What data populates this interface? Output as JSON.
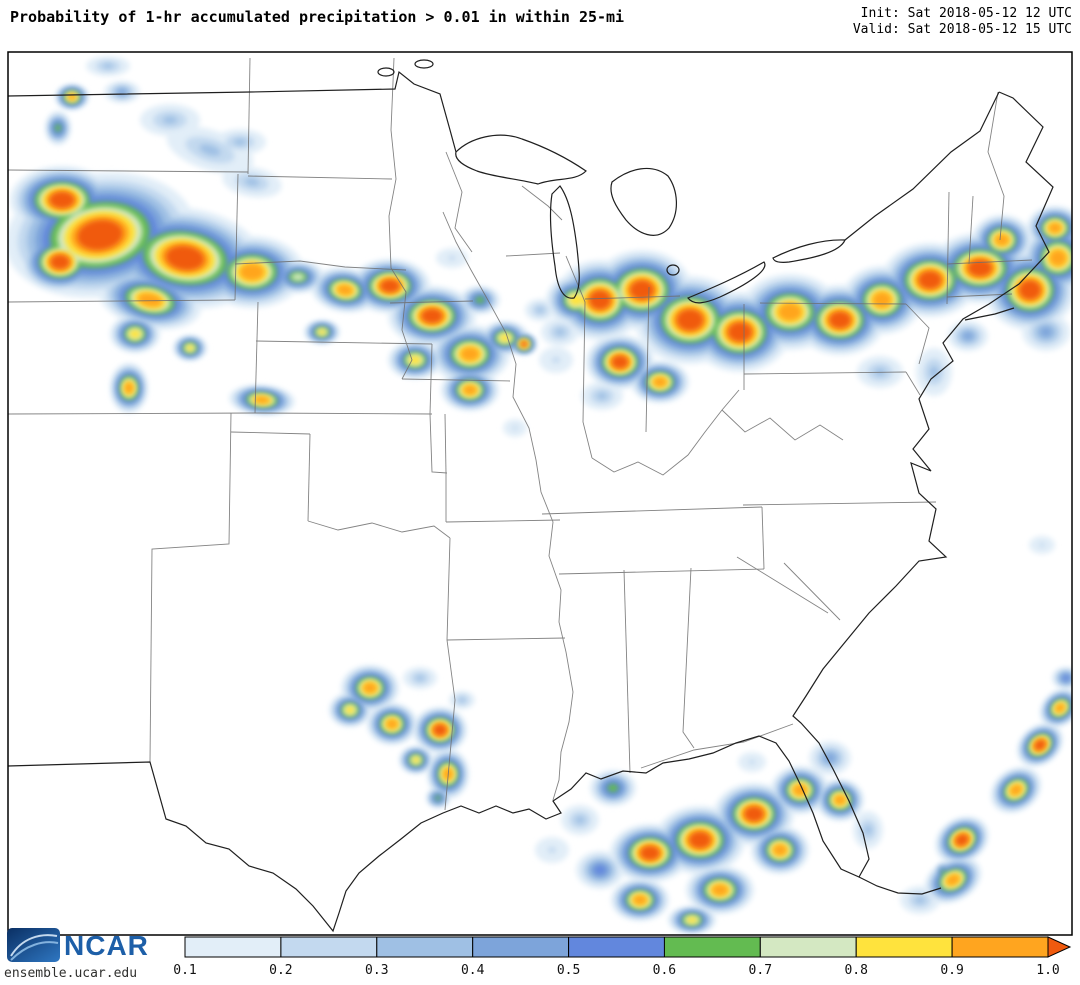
{
  "header": {
    "title": "Probability of 1-hr accumulated precipitation > 0.01 in within 25-mi",
    "init_label": "Init: Sat 2018-05-12 12 UTC",
    "valid_label": "Valid: Sat 2018-05-12 15 UTC"
  },
  "footer": {
    "logo_text": "NCAR",
    "site_url": "ensemble.ucar.edu"
  },
  "colorbar": {
    "tick_labels": [
      "0.1",
      "0.2",
      "0.3",
      "0.4",
      "0.5",
      "0.6",
      "0.7",
      "0.8",
      "0.9",
      "1.0"
    ],
    "segment_colors": [
      "#e2eef8",
      "#c3d9ef",
      "#9fc0e4",
      "#7da4da",
      "#6287dd",
      "#63bb51",
      "#d4e8c2",
      "#ffe33d",
      "#ffa51f"
    ],
    "arrow_color": "#f05a0e",
    "outline_color": "#000000"
  },
  "map": {
    "background": "#ffffff",
    "state_border_color": "#6e6e6e",
    "coast_border_color": "#1f1f1f",
    "frame_color": "#000000",
    "high_probability_regions": [
      "Montana / Wyoming / western Dakotas and Nebraska panhandle",
      "Eastern Nebraska / Iowa / northern Missouri",
      "Great Lakes and Ohio Valley eastward through New York and New England",
      "Central and coastal Texas",
      "Central Gulf Coast, Florida and adjacent Gulf of Mexico",
      "Western Atlantic southeast of Florida"
    ]
  }
}
